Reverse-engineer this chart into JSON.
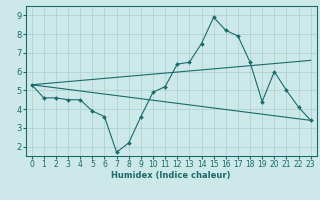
{
  "xlabel": "Humidex (Indice chaleur)",
  "ylabel": "",
  "xlim": [
    -0.5,
    23.5
  ],
  "ylim": [
    1.5,
    9.5
  ],
  "xticks": [
    0,
    1,
    2,
    3,
    4,
    5,
    6,
    7,
    8,
    9,
    10,
    11,
    12,
    13,
    14,
    15,
    16,
    17,
    18,
    19,
    20,
    21,
    22,
    23
  ],
  "yticks": [
    2,
    3,
    4,
    5,
    6,
    7,
    8,
    9
  ],
  "bg_color": "#cce8e8",
  "grid_color": "#aacfcf",
  "line_color": "#1a6b6b",
  "line1_x": [
    0,
    1,
    2,
    3,
    4,
    5,
    6,
    7,
    8,
    9,
    10,
    11,
    12,
    13,
    14,
    15,
    16,
    17,
    18,
    19,
    20,
    21,
    22,
    23
  ],
  "line1_y": [
    5.3,
    4.6,
    4.6,
    4.5,
    4.5,
    3.9,
    3.6,
    1.7,
    2.2,
    3.6,
    4.9,
    5.2,
    6.4,
    6.5,
    7.5,
    8.9,
    8.2,
    7.9,
    6.5,
    4.4,
    6.0,
    5.0,
    4.1,
    3.4
  ],
  "line2_x": [
    0,
    23
  ],
  "line2_y": [
    5.3,
    3.4
  ],
  "line3_x": [
    0,
    23
  ],
  "line3_y": [
    5.3,
    6.6
  ]
}
